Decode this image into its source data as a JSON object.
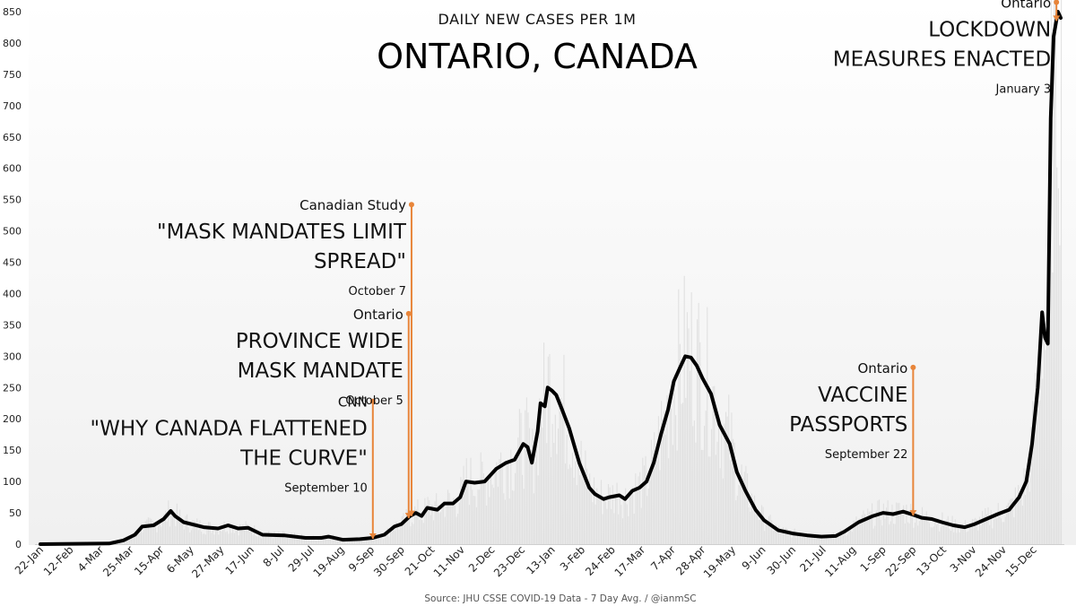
{
  "chart_data": {
    "type": "line",
    "subtitle": "DAILY NEW CASES PER 1M",
    "title": "ONTARIO, CANADA",
    "source": "Source: JHU CSSE COVID-19 Data - 7 Day Avg. / @ianmSC",
    "ylim": [
      0,
      850
    ],
    "yticks": [
      0,
      50,
      100,
      150,
      200,
      250,
      300,
      350,
      400,
      450,
      500,
      550,
      600,
      650,
      700,
      750,
      800,
      850
    ],
    "xlim": [
      "2020-01-22",
      "2022-01-03"
    ],
    "xticks": [
      {
        "date": "2020-01-22",
        "label": "22-Jan"
      },
      {
        "date": "2020-02-12",
        "label": "12-Feb"
      },
      {
        "date": "2020-03-04",
        "label": "4-Mar"
      },
      {
        "date": "2020-03-25",
        "label": "25-Mar"
      },
      {
        "date": "2020-04-15",
        "label": "15-Apr"
      },
      {
        "date": "2020-05-06",
        "label": "6-May"
      },
      {
        "date": "2020-05-27",
        "label": "27-May"
      },
      {
        "date": "2020-06-17",
        "label": "17-Jun"
      },
      {
        "date": "2020-07-08",
        "label": "8-Jul"
      },
      {
        "date": "2020-07-29",
        "label": "29-Jul"
      },
      {
        "date": "2020-08-19",
        "label": "19-Aug"
      },
      {
        "date": "2020-09-09",
        "label": "9-Sep"
      },
      {
        "date": "2020-09-30",
        "label": "30-Sep"
      },
      {
        "date": "2020-10-21",
        "label": "21-Oct"
      },
      {
        "date": "2020-11-11",
        "label": "11-Nov"
      },
      {
        "date": "2020-12-02",
        "label": "2-Dec"
      },
      {
        "date": "2020-12-23",
        "label": "23-Dec"
      },
      {
        "date": "2021-01-13",
        "label": "13-Jan"
      },
      {
        "date": "2021-02-03",
        "label": "3-Feb"
      },
      {
        "date": "2021-02-24",
        "label": "24-Feb"
      },
      {
        "date": "2021-03-17",
        "label": "17-Mar"
      },
      {
        "date": "2021-04-07",
        "label": "7-Apr"
      },
      {
        "date": "2021-04-28",
        "label": "28-Apr"
      },
      {
        "date": "2021-05-19",
        "label": "19-May"
      },
      {
        "date": "2021-06-09",
        "label": "9-Jun"
      },
      {
        "date": "2021-06-30",
        "label": "30-Jun"
      },
      {
        "date": "2021-07-21",
        "label": "21-Jul"
      },
      {
        "date": "2021-08-11",
        "label": "11-Aug"
      },
      {
        "date": "2021-09-01",
        "label": "1-Sep"
      },
      {
        "date": "2021-09-22",
        "label": "22-Sep"
      },
      {
        "date": "2021-10-13",
        "label": "13-Oct"
      },
      {
        "date": "2021-11-03",
        "label": "3-Nov"
      },
      {
        "date": "2021-11-24",
        "label": "24-Nov"
      },
      {
        "date": "2021-12-15",
        "label": "15-Dec"
      }
    ],
    "series": [
      {
        "points": [
          [
            "2020-01-22",
            0
          ],
          [
            "2020-03-10",
            1
          ],
          [
            "2020-03-20",
            6
          ],
          [
            "2020-03-28",
            15
          ],
          [
            "2020-04-02",
            28
          ],
          [
            "2020-04-10",
            30
          ],
          [
            "2020-04-17",
            40
          ],
          [
            "2020-04-22",
            53
          ],
          [
            "2020-04-25",
            45
          ],
          [
            "2020-05-01",
            35
          ],
          [
            "2020-05-15",
            27
          ],
          [
            "2020-05-25",
            25
          ],
          [
            "2020-06-01",
            30
          ],
          [
            "2020-06-08",
            25
          ],
          [
            "2020-06-15",
            26
          ],
          [
            "2020-06-25",
            15
          ],
          [
            "2020-07-10",
            14
          ],
          [
            "2020-07-25",
            10
          ],
          [
            "2020-08-05",
            10
          ],
          [
            "2020-08-10",
            12
          ],
          [
            "2020-08-20",
            7
          ],
          [
            "2020-09-01",
            8
          ],
          [
            "2020-09-10",
            10
          ],
          [
            "2020-09-18",
            15
          ],
          [
            "2020-09-25",
            28
          ],
          [
            "2020-09-30",
            32
          ],
          [
            "2020-10-06",
            45
          ],
          [
            "2020-10-10",
            50
          ],
          [
            "2020-10-14",
            45
          ],
          [
            "2020-10-18",
            58
          ],
          [
            "2020-10-25",
            55
          ],
          [
            "2020-10-30",
            65
          ],
          [
            "2020-11-05",
            65
          ],
          [
            "2020-11-10",
            75
          ],
          [
            "2020-11-14",
            100
          ],
          [
            "2020-11-20",
            98
          ],
          [
            "2020-11-27",
            100
          ],
          [
            "2020-12-05",
            120
          ],
          [
            "2020-12-12",
            130
          ],
          [
            "2020-12-18",
            135
          ],
          [
            "2020-12-24",
            160
          ],
          [
            "2020-12-27",
            155
          ],
          [
            "2020-12-30",
            130
          ],
          [
            "2021-01-03",
            180
          ],
          [
            "2021-01-05",
            225
          ],
          [
            "2021-01-08",
            220
          ],
          [
            "2021-01-10",
            250
          ],
          [
            "2021-01-13",
            245
          ],
          [
            "2021-01-16",
            238
          ],
          [
            "2021-01-20",
            215
          ],
          [
            "2021-01-25",
            185
          ],
          [
            "2021-02-01",
            130
          ],
          [
            "2021-02-08",
            90
          ],
          [
            "2021-02-12",
            80
          ],
          [
            "2021-02-18",
            72
          ],
          [
            "2021-02-22",
            75
          ],
          [
            "2021-03-01",
            78
          ],
          [
            "2021-03-05",
            72
          ],
          [
            "2021-03-10",
            85
          ],
          [
            "2021-03-15",
            90
          ],
          [
            "2021-03-20",
            100
          ],
          [
            "2021-03-25",
            130
          ],
          [
            "2021-03-30",
            175
          ],
          [
            "2021-04-04",
            215
          ],
          [
            "2021-04-08",
            260
          ],
          [
            "2021-04-12",
            280
          ],
          [
            "2021-04-16",
            300
          ],
          [
            "2021-04-20",
            298
          ],
          [
            "2021-04-24",
            285
          ],
          [
            "2021-04-28",
            265
          ],
          [
            "2021-05-04",
            240
          ],
          [
            "2021-05-10",
            190
          ],
          [
            "2021-05-17",
            160
          ],
          [
            "2021-05-22",
            115
          ],
          [
            "2021-05-28",
            85
          ],
          [
            "2021-06-04",
            55
          ],
          [
            "2021-06-10",
            38
          ],
          [
            "2021-06-20",
            22
          ],
          [
            "2021-06-30",
            17
          ],
          [
            "2021-07-10",
            14
          ],
          [
            "2021-07-20",
            12
          ],
          [
            "2021-07-30",
            13
          ],
          [
            "2021-08-05",
            20
          ],
          [
            "2021-08-15",
            35
          ],
          [
            "2021-08-25",
            45
          ],
          [
            "2021-09-01",
            50
          ],
          [
            "2021-09-08",
            48
          ],
          [
            "2021-09-15",
            52
          ],
          [
            "2021-09-22",
            47
          ],
          [
            "2021-09-28",
            42
          ],
          [
            "2021-10-05",
            40
          ],
          [
            "2021-10-12",
            35
          ],
          [
            "2021-10-20",
            30
          ],
          [
            "2021-10-28",
            27
          ],
          [
            "2021-11-04",
            32
          ],
          [
            "2021-11-12",
            40
          ],
          [
            "2021-11-20",
            48
          ],
          [
            "2021-11-28",
            55
          ],
          [
            "2021-12-05",
            75
          ],
          [
            "2021-12-10",
            100
          ],
          [
            "2021-12-14",
            160
          ],
          [
            "2021-12-18",
            250
          ],
          [
            "2021-12-21",
            370
          ],
          [
            "2021-12-23",
            330
          ],
          [
            "2021-12-25",
            320
          ],
          [
            "2021-12-27",
            680
          ],
          [
            "2021-12-29",
            810
          ],
          [
            "2022-01-01",
            850
          ],
          [
            "2022-01-03",
            840
          ]
        ]
      }
    ],
    "annotations": [
      {
        "source": "CNN",
        "headline": [
          "\"WHY CANADA FLATTENED",
          "THE CURVE\""
        ],
        "date_label": "September 10",
        "date": "2020-09-10",
        "top_value": 228
      },
      {
        "source": "Ontario",
        "headline": [
          "PROVINCE WIDE",
          "MASK MANDATE"
        ],
        "date_label": "October 5",
        "date": "2020-10-05",
        "top_value": 368
      },
      {
        "source": "Canadian Study",
        "headline": [
          "\"MASK MANDATES LIMIT",
          "SPREAD\""
        ],
        "date_label": "October 7",
        "date": "2020-10-07",
        "top_value": 542
      },
      {
        "source": "Ontario",
        "headline": [
          "VACCINE",
          "PASSPORTS"
        ],
        "date_label": "September 22",
        "date": "2021-09-22",
        "top_value": 282
      },
      {
        "source": "Ontario",
        "headline": [
          "LOCKDOWN",
          "MEASURES ENACTED"
        ],
        "date_label": "January 3",
        "date": "2021-12-31",
        "top_value": 865
      }
    ],
    "colors": {
      "line": "#000000",
      "annotation": "#e8853a",
      "bars": "#d9d9d9",
      "background_bottom": "#f0f0f0",
      "background_top": "#ffffff"
    }
  }
}
